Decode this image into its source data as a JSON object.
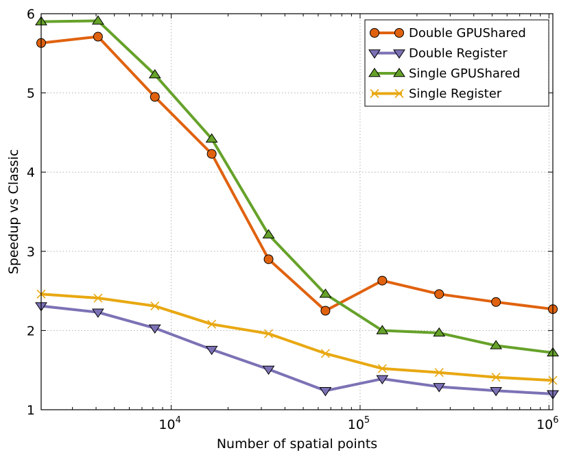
{
  "chart_data": {
    "type": "line",
    "xscale": "log",
    "xlabel": "Number of spatial points",
    "ylabel": "Speedup vs Classic",
    "xlim": [
      2048,
      1048576
    ],
    "ylim": [
      1,
      6
    ],
    "grid": true,
    "legend_position": "top-right",
    "x": [
      2048,
      4096,
      8192,
      16384,
      32768,
      65536,
      131072,
      262144,
      524288,
      1048576
    ],
    "yticks": [
      1,
      2,
      3,
      4,
      5,
      6
    ],
    "xticks": [
      {
        "value": 10000,
        "base": "10",
        "exp": "4"
      },
      {
        "value": 100000,
        "base": "10",
        "exp": "5"
      },
      {
        "value": 1000000,
        "base": "10",
        "exp": "6"
      }
    ],
    "series": [
      {
        "name": "Double GPUShared",
        "color": "#e0620f",
        "marker": "circle",
        "values": [
          5.63,
          5.71,
          4.95,
          4.23,
          2.9,
          2.25,
          2.63,
          2.46,
          2.36,
          2.27
        ]
      },
      {
        "name": "Double Register",
        "color": "#7b72b5",
        "marker": "triangle-down",
        "values": [
          2.31,
          2.23,
          2.03,
          1.76,
          1.51,
          1.24,
          1.39,
          1.29,
          1.24,
          1.2
        ]
      },
      {
        "name": "Single GPUShared",
        "color": "#66a22a",
        "marker": "triangle-up",
        "values": [
          5.9,
          5.91,
          5.23,
          4.42,
          3.21,
          2.46,
          2.0,
          1.97,
          1.81,
          1.72
        ]
      },
      {
        "name": "Single Register",
        "color": "#e8a812",
        "marker": "x",
        "values": [
          2.46,
          2.41,
          2.31,
          2.08,
          1.96,
          1.71,
          1.52,
          1.47,
          1.41,
          1.37
        ]
      }
    ]
  }
}
